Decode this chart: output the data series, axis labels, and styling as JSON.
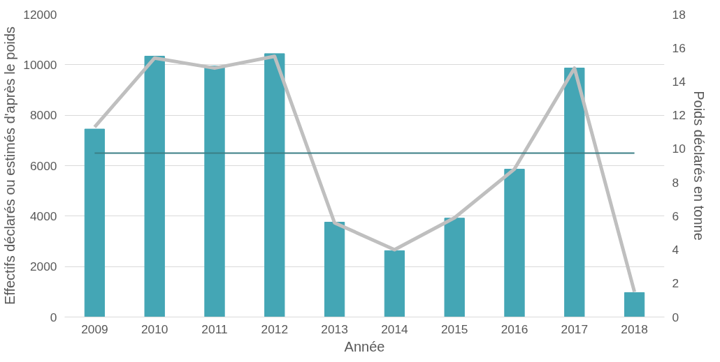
{
  "chart_data": {
    "type": "bar",
    "xlabel": "Année",
    "ylabel": "Effectifs déclarés ou estimés d'après le poids",
    "y2label": "Poids déclarés en tonne",
    "categories": [
      "2009",
      "2010",
      "2011",
      "2012",
      "2013",
      "2014",
      "2015",
      "2016",
      "2017",
      "2018"
    ],
    "series": [
      {
        "color": "#44a6b5",
        "values": [
          7450,
          10340,
          9950,
          10440,
          3760,
          2630,
          3920,
          5860,
          9870,
          970
        ]
      },
      {
        "type": "line",
        "axis": "y2",
        "color": "#bfbfbf",
        "values": [
          11.3,
          15.4,
          14.8,
          15.5,
          5.6,
          4.0,
          5.9,
          8.8,
          14.8,
          1.5
        ]
      }
    ],
    "ylim": [
      0,
      12000
    ],
    "yticks": [
      0,
      2000,
      4000,
      6000,
      8000,
      10000,
      12000
    ],
    "y2lim": [
      0,
      18
    ],
    "y2ticks": [
      0,
      2,
      4,
      6,
      8,
      10,
      12,
      14,
      16,
      18
    ],
    "ref_lines": [
      {
        "axis": "y",
        "value": 6500,
        "color": "#3a7f85"
      }
    ],
    "grid": "y"
  }
}
